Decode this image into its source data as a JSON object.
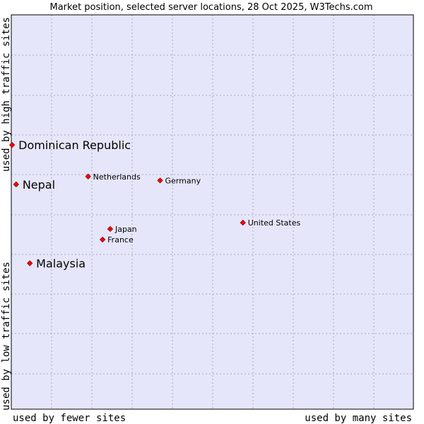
{
  "chart_data": {
    "type": "scatter",
    "title": "Market position, selected server locations, 28 Oct 2025, W3Techs.com",
    "xlabel_left": "used by fewer sites",
    "xlabel_right": "used by many sites",
    "ylabel_top": "used by high traffic sites",
    "ylabel_bottom": "used by low traffic sites",
    "xlim": [
      0,
      100
    ],
    "ylim": [
      0,
      100
    ],
    "grid": true,
    "colors": {
      "plot_bg": "#e6e6fa",
      "grid": "#a9a9b8",
      "marker": "#ff0000",
      "marker_edge": "#8b0000"
    },
    "points": [
      {
        "name": "Dominican Republic",
        "x": 0.2,
        "y": 67.0,
        "highlight": true
      },
      {
        "name": "Nepal",
        "x": 1.2,
        "y": 57.0,
        "highlight": true
      },
      {
        "name": "Malaysia",
        "x": 4.6,
        "y": 37.0,
        "highlight": true
      },
      {
        "name": "Netherlands",
        "x": 19.1,
        "y": 59.0,
        "highlight": false
      },
      {
        "name": "Germany",
        "x": 37.0,
        "y": 58.0,
        "highlight": false
      },
      {
        "name": "United States",
        "x": 57.6,
        "y": 47.3,
        "highlight": false
      },
      {
        "name": "Japan",
        "x": 24.6,
        "y": 45.7,
        "highlight": false
      },
      {
        "name": "France",
        "x": 22.7,
        "y": 43.0,
        "highlight": false
      }
    ]
  }
}
